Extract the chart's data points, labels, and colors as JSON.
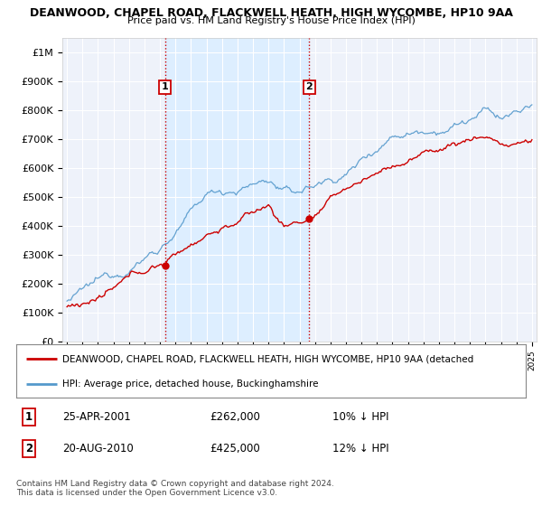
{
  "title": "DEANWOOD, CHAPEL ROAD, FLACKWELL HEATH, HIGH WYCOMBE, HP10 9AA",
  "subtitle": "Price paid vs. HM Land Registry's House Price Index (HPI)",
  "ylim": [
    0,
    1050000
  ],
  "yticks": [
    0,
    100000,
    200000,
    300000,
    400000,
    500000,
    600000,
    700000,
    800000,
    900000,
    1000000
  ],
  "ylabels": [
    "£0",
    "£100K",
    "£200K",
    "£300K",
    "£400K",
    "£500K",
    "£600K",
    "£700K",
    "£800K",
    "£900K",
    "£1M"
  ],
  "sale1_date": "25-APR-2001",
  "sale1_price": 262000,
  "sale1_hpi_diff": "10% ↓ HPI",
  "sale2_date": "20-AUG-2010",
  "sale2_price": 425000,
  "sale2_hpi_diff": "12% ↓ HPI",
  "legend_label_red": "DEANWOOD, CHAPEL ROAD, FLACKWELL HEATH, HIGH WYCOMBE, HP10 9AA (detached",
  "legend_label_blue": "HPI: Average price, detached house, Buckinghamshire",
  "footer": "Contains HM Land Registry data © Crown copyright and database right 2024.\nThis data is licensed under the Open Government Licence v3.0.",
  "line_color_red": "#cc0000",
  "line_color_blue": "#5599cc",
  "shade_color": "#ddeeff",
  "background_color": "#ffffff",
  "plot_bg_color": "#eef2fa",
  "grid_color": "#ffffff",
  "sale1_x": 2001.32,
  "sale2_x": 2010.64,
  "start_year": 1995,
  "end_year": 2025
}
